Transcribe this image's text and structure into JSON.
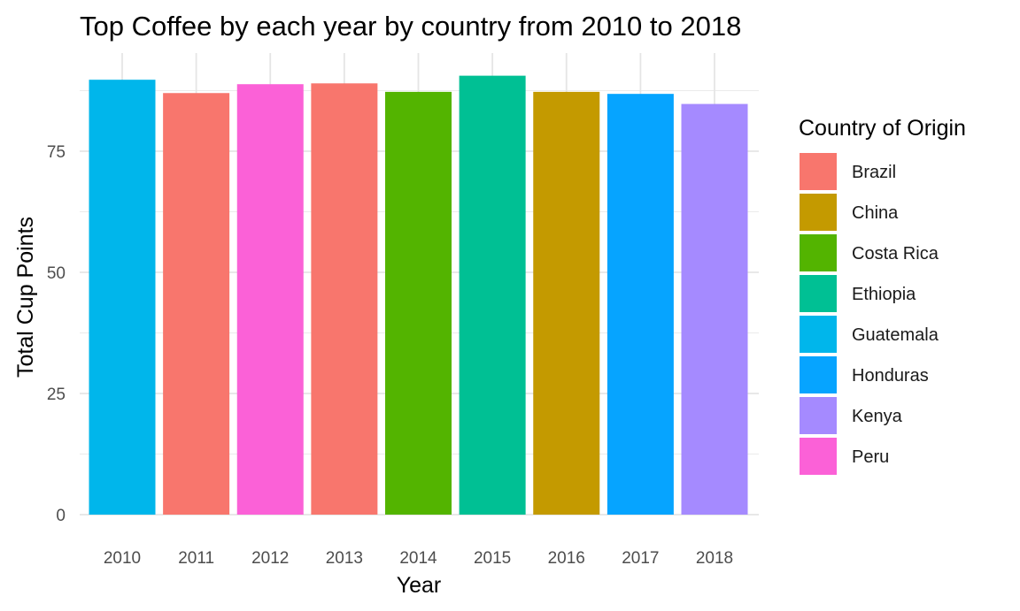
{
  "chart_data": {
    "type": "bar",
    "title": "Top Coffee by each year by country from 2010 to 2018",
    "xlabel": "Year",
    "ylabel": "Total Cup Points",
    "categories": [
      "2010",
      "2011",
      "2012",
      "2013",
      "2014",
      "2015",
      "2016",
      "2017",
      "2018"
    ],
    "values": [
      89.75,
      87.0,
      88.83,
      89.0,
      87.25,
      90.58,
      87.25,
      86.83,
      84.75
    ],
    "bar_country": [
      "Guatemala",
      "Brazil",
      "Peru",
      "Brazil",
      "Costa Rica",
      "Ethiopia",
      "China",
      "Honduras",
      "Kenya"
    ],
    "ylim": [
      0,
      92.5
    ],
    "y_ticks": [
      0,
      25,
      50,
      75
    ],
    "y_tick_labels": [
      "0",
      "25",
      "50",
      "75"
    ],
    "grid": true,
    "legend": {
      "title": "Country of Origin",
      "placement": "right",
      "entries": [
        {
          "name": "Brazil",
          "color": "#F8766D"
        },
        {
          "name": "China",
          "color": "#C49A00"
        },
        {
          "name": "Costa Rica",
          "color": "#53B400"
        },
        {
          "name": "Ethiopia",
          "color": "#00C094"
        },
        {
          "name": "Guatemala",
          "color": "#00B6EB"
        },
        {
          "name": "Honduras",
          "color": "#06A4FF"
        },
        {
          "name": "Kenya",
          "color": "#A58AFF"
        },
        {
          "name": "Peru",
          "color": "#FB61D7"
        }
      ]
    }
  }
}
